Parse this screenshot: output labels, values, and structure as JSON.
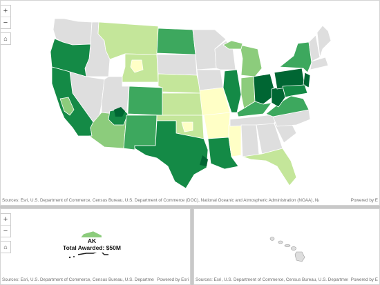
{
  "attribution": {
    "main": "Sources: Esri, U.S. Department of Commerce, Census Bureau, U.S. Department of Commerce (DOC), National Oceanic and Atmospheric Administration (NOAA), National Ocean Service (NOS)...",
    "ak": "Sources: Esri, U.S. Department of Commerce, Census Bureau, U.S. Department of C...",
    "hi": "Sources: Esri, U.S. Department of Commerce, Census Bureau, U.S. Department of C...",
    "powered": "Powered by Esri",
    "powered_short": "Powered by E"
  },
  "controls": {
    "zoom_in": "+",
    "zoom_out": "−",
    "home_icon": "home-icon"
  },
  "popup": {
    "state": "AK",
    "label": "Total Awarded: $50M"
  },
  "colors": {
    "none": "#dedede",
    "c1": "#ffffc6",
    "c2": "#c4e69a",
    "c3": "#8ccc7c",
    "c4": "#3da85e",
    "c5": "#148a46",
    "c6": "#006633",
    "state_border": "#ffffff",
    "neutral_border": "#b8b8b8"
  }
}
